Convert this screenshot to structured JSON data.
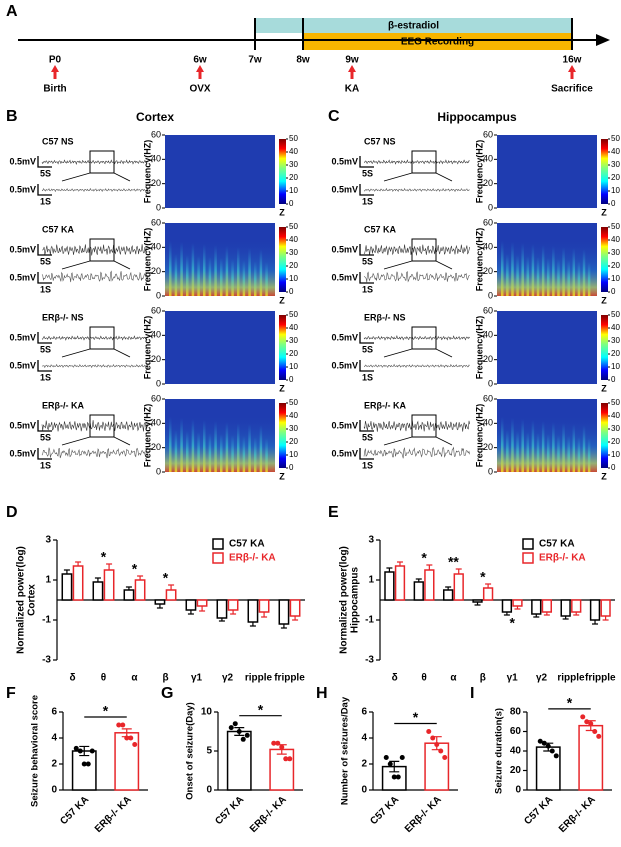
{
  "panel_labels": [
    "A",
    "B",
    "C",
    "D",
    "E",
    "F",
    "G",
    "H",
    "I"
  ],
  "timeline": {
    "bands": [
      "β-estradiol",
      "EEG Recording"
    ],
    "ticks": [
      "P0",
      "6w",
      "7w",
      "8w",
      "9w",
      "16w"
    ],
    "events": [
      "Birth",
      "OVX",
      null,
      null,
      "KA",
      "Sacrifice"
    ]
  },
  "eeg": {
    "panels": [
      {
        "title": "Cortex",
        "rows": [
          "C57  NS",
          "C57  KA",
          "ERβ-/- NS",
          "ERβ-/- KA"
        ]
      },
      {
        "title": "Hippocampus",
        "rows": [
          "C57  NS",
          "C57  KA",
          "ERβ-/- NS",
          "ERβ-/- KA"
        ]
      }
    ],
    "amplitude_scale": "0.5mV",
    "time_scales": [
      "5S",
      "1S"
    ],
    "spectrogram": {
      "ylabel": "Frequency(HZ)",
      "ylim": [
        0,
        60
      ],
      "yticks": [
        0,
        20,
        40,
        60
      ],
      "colorbar_lim": [
        0,
        50
      ],
      "colorbar_ticks": [
        0,
        10,
        20,
        30,
        40,
        50
      ],
      "colorbar_label": "Z"
    }
  },
  "chart_data": [
    {
      "type": "grouped-bar",
      "ylabel": [
        "Normalized power(log)",
        "Cortex"
      ],
      "categories": [
        "δ",
        "θ",
        "α",
        "β",
        "γ1",
        "γ2",
        "ripple",
        "fripple"
      ],
      "series": [
        {
          "name": "C57 KA",
          "color": "#000000",
          "values": [
            1.3,
            0.9,
            0.5,
            -0.2,
            -0.5,
            -0.9,
            -1.1,
            -1.2
          ],
          "errors": [
            0.2,
            0.2,
            0.15,
            0.2,
            0.2,
            0.15,
            0.2,
            0.2
          ]
        },
        {
          "name": "ERβ-/- KA",
          "color": "#e8262a",
          "values": [
            1.7,
            1.5,
            1.0,
            0.5,
            -0.3,
            -0.5,
            -0.6,
            -0.8
          ],
          "errors": [
            0.2,
            0.3,
            0.2,
            0.25,
            0.25,
            0.2,
            0.25,
            0.2
          ]
        }
      ],
      "significance": [
        null,
        "*",
        "*",
        "*",
        null,
        null,
        null,
        null
      ],
      "ylim": [
        -3,
        3
      ],
      "yticks": [
        -3,
        -1,
        1,
        3
      ],
      "legend": "upper right"
    },
    {
      "type": "grouped-bar",
      "ylabel": [
        "Normalized power(log)",
        "Hippocampus"
      ],
      "categories": [
        "δ",
        "θ",
        "α",
        "β",
        "γ1",
        "γ2",
        "ripple",
        "fripple"
      ],
      "series": [
        {
          "name": "C57 KA",
          "color": "#000000",
          "values": [
            1.4,
            0.9,
            0.5,
            -0.1,
            -0.6,
            -0.7,
            -0.8,
            -1.0
          ],
          "errors": [
            0.2,
            0.15,
            0.15,
            0.15,
            0.15,
            0.15,
            0.15,
            0.2
          ]
        },
        {
          "name": "ERβ-/- KA",
          "color": "#e8262a",
          "values": [
            1.7,
            1.5,
            1.3,
            0.6,
            -0.3,
            -0.6,
            -0.6,
            -0.8
          ],
          "errors": [
            0.2,
            0.25,
            0.25,
            0.2,
            0.15,
            0.15,
            0.15,
            0.2
          ]
        }
      ],
      "significance": [
        null,
        "*",
        "**",
        "*",
        "*",
        null,
        null,
        null
      ],
      "ylim": [
        -3,
        3
      ],
      "yticks": [
        -3,
        -1,
        1,
        3
      ],
      "legend": "upper right"
    },
    {
      "type": "bar",
      "ylabel": "Seizure behavioral score",
      "categories": [
        "C57 KA",
        "ERβ-/- KA"
      ],
      "colors": [
        "#000000",
        "#e8262a"
      ],
      "values": [
        3.0,
        4.4
      ],
      "errors": [
        0.35,
        0.3
      ],
      "points": [
        [
          3.2,
          3.0,
          2.0,
          2.0,
          3.0
        ],
        [
          5.0,
          5.0,
          4.0,
          4.0,
          3.5
        ]
      ],
      "significance": "*",
      "ylim": [
        0,
        6
      ],
      "yticks": [
        0,
        2,
        4,
        6
      ]
    },
    {
      "type": "bar",
      "ylabel": "Onset of seizure(Day)",
      "categories": [
        "C57 KA",
        "ERβ-/- KA"
      ],
      "colors": [
        "#000000",
        "#e8262a"
      ],
      "values": [
        7.5,
        5.2
      ],
      "errors": [
        0.5,
        0.6
      ],
      "points": [
        [
          8.0,
          8.5,
          7.5,
          6.5,
          7.0
        ],
        [
          6.0,
          6.0,
          5.5,
          4.0,
          4.0
        ]
      ],
      "significance": "*",
      "ylim": [
        0,
        10
      ],
      "yticks": [
        0,
        5,
        10
      ]
    },
    {
      "type": "bar",
      "ylabel": "Number of seizures/Day",
      "categories": [
        "C57 KA",
        "ERβ-/- KA"
      ],
      "colors": [
        "#000000",
        "#e8262a"
      ],
      "values": [
        1.8,
        3.6
      ],
      "errors": [
        0.4,
        0.5
      ],
      "points": [
        [
          2.5,
          2.0,
          1.0,
          1.0,
          2.5
        ],
        [
          4.5,
          4.0,
          3.5,
          3.0,
          2.5
        ]
      ],
      "significance": "*",
      "ylim": [
        0,
        6
      ],
      "yticks": [
        0,
        2,
        4,
        6
      ]
    },
    {
      "type": "bar",
      "ylabel": "Seizure duration(s)",
      "categories": [
        "C57 KA",
        "ERβ-/- KA"
      ],
      "colors": [
        "#000000",
        "#e8262a"
      ],
      "values": [
        44,
        66
      ],
      "errors": [
        4,
        5
      ],
      "points": [
        [
          50,
          48,
          45,
          40,
          35
        ],
        [
          75,
          70,
          68,
          60,
          55
        ]
      ],
      "significance": "*",
      "ylim": [
        0,
        80
      ],
      "yticks": [
        0,
        20,
        40,
        60,
        80
      ]
    }
  ]
}
